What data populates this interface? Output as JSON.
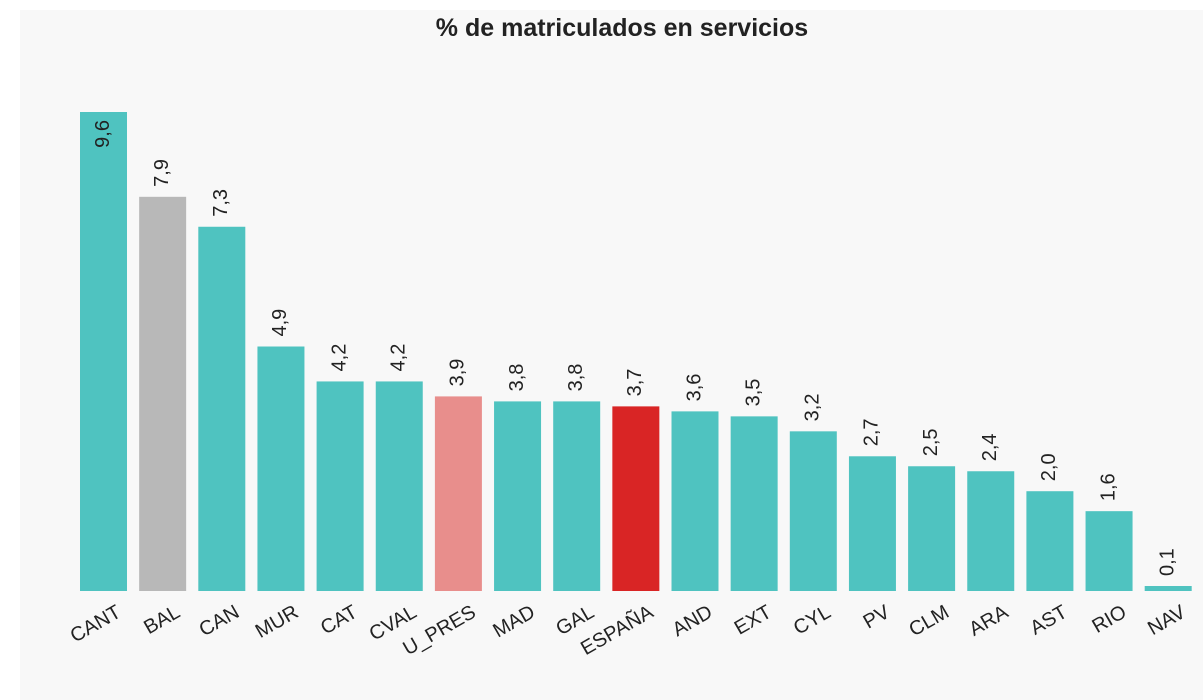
{
  "chart_data": {
    "type": "bar",
    "title": "% de matriculados en servicios",
    "categories": [
      "CANT",
      "BAL",
      "CAN",
      "MUR",
      "CAT",
      "CVAL",
      "U_PRES",
      "MAD",
      "GAL",
      "ESPAÑA",
      "AND",
      "EXT",
      "CYL",
      "PV",
      "CLM",
      "ARA",
      "AST",
      "RIO",
      "NAV"
    ],
    "values": [
      9.6,
      7.9,
      7.3,
      4.9,
      4.2,
      4.2,
      3.9,
      3.8,
      3.8,
      3.7,
      3.6,
      3.5,
      3.2,
      2.7,
      2.5,
      2.4,
      2.0,
      1.6,
      0.1
    ],
    "value_labels": [
      "9,6",
      "7,9",
      "7,3",
      "4,9",
      "4,2",
      "4,2",
      "3,9",
      "3,8",
      "3,8",
      "3,7",
      "3,6",
      "3,5",
      "3,2",
      "2,7",
      "2,5",
      "2,4",
      "2,0",
      "1,6",
      "0,1"
    ],
    "colors": [
      "#4fc3c0",
      "#b8b8b8",
      "#4fc3c0",
      "#4fc3c0",
      "#4fc3c0",
      "#4fc3c0",
      "#e88e8c",
      "#4fc3c0",
      "#4fc3c0",
      "#d92525",
      "#4fc3c0",
      "#4fc3c0",
      "#4fc3c0",
      "#4fc3c0",
      "#4fc3c0",
      "#4fc3c0",
      "#4fc3c0",
      "#4fc3c0",
      "#4fc3c0"
    ]
  }
}
